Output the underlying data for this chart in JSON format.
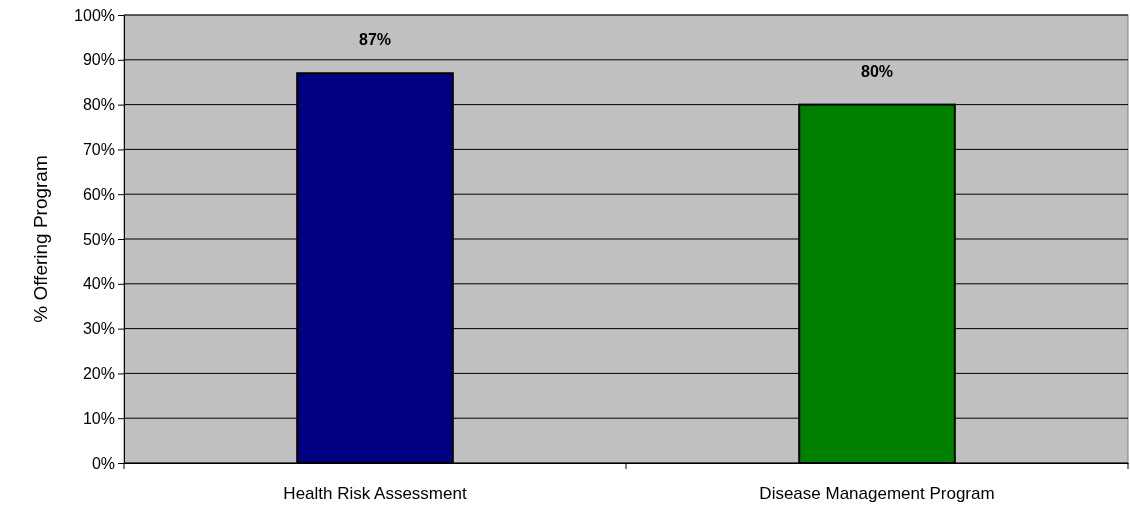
{
  "chart_data": {
    "type": "bar",
    "ylabel": "% Offering Program",
    "categories": [
      "Health Risk Assessment",
      "Disease Management Program"
    ],
    "values": [
      87,
      80
    ],
    "colors": [
      "#000080",
      "#008000"
    ],
    "value_labels": [
      "87%",
      "80%"
    ],
    "ylim": [
      0,
      100
    ],
    "yticks": [
      {
        "value": 0,
        "label": "0%"
      },
      {
        "value": 10,
        "label": "10%"
      },
      {
        "value": 20,
        "label": "20%"
      },
      {
        "value": 30,
        "label": "30%"
      },
      {
        "value": 40,
        "label": "40%"
      },
      {
        "value": 50,
        "label": "50%"
      },
      {
        "value": 60,
        "label": "60%"
      },
      {
        "value": 70,
        "label": "70%"
      },
      {
        "value": 80,
        "label": "80%"
      },
      {
        "value": 90,
        "label": "90%"
      },
      {
        "value": 100,
        "label": "100%"
      }
    ],
    "grid": "y"
  }
}
